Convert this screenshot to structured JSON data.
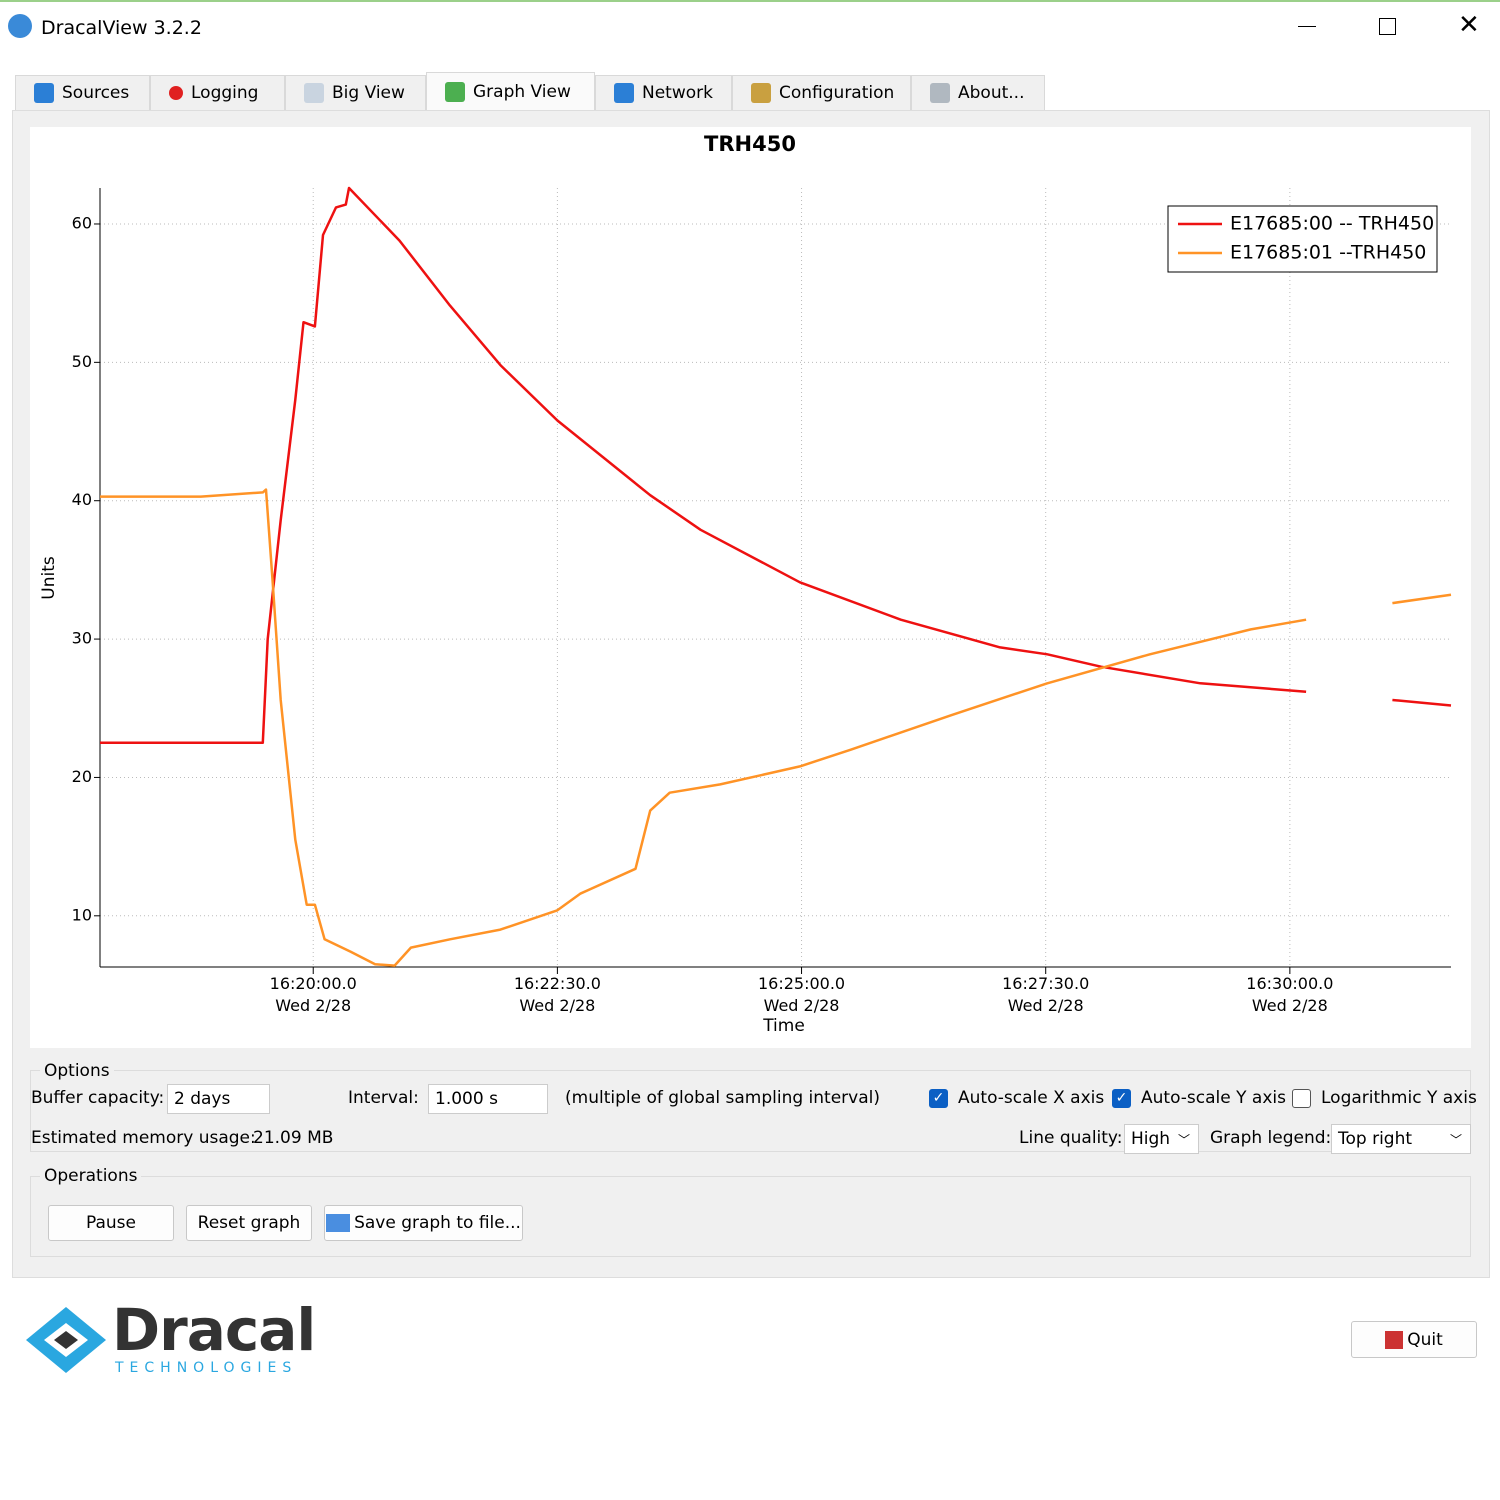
{
  "window": {
    "title": "DracalView 3.2.2"
  },
  "tabs": [
    "Sources",
    "Logging",
    "Big View",
    "Graph View",
    "Network",
    "Configuration",
    "About..."
  ],
  "active_tab": 3,
  "chart_data": {
    "type": "line",
    "title": "TRH450",
    "x_label": "Time",
    "y_label": "Units",
    "xlim": [
      "16:17:49",
      "16:31:39"
    ],
    "xticks": [
      {
        "value": "16:20:00",
        "label": "16:20:00.0",
        "date": "Wed 2/28"
      },
      {
        "value": "16:22:30",
        "label": "16:22:30.0",
        "date": "Wed 2/28"
      },
      {
        "value": "16:25:00",
        "label": "16:25:00.0",
        "date": "Wed 2/28"
      },
      {
        "value": "16:27:30",
        "label": "16:27:30.0",
        "date": "Wed 2/28"
      },
      {
        "value": "16:30:00",
        "label": "16:30:00.0",
        "date": "Wed 2/28"
      }
    ],
    "ylim": [
      6.3,
      62.6
    ],
    "yticks": [
      10,
      20,
      30,
      40,
      50,
      60
    ],
    "grid": true,
    "legend": "top right",
    "series": [
      {
        "name": "E17685:00 -- TRH450",
        "color": "#ee1111",
        "x": [
          "16:17:49",
          "16:19:29",
          "16:19:32",
          "16:19:40",
          "16:19:49",
          "16:19:54",
          "16:20:01",
          "16:20:06",
          "16:20:14",
          "16:20:20",
          "16:20:22",
          "16:20:53",
          "16:21:24",
          "16:21:55",
          "16:22:30",
          "16:23:27",
          "16:23:58",
          "16:24:59",
          "16:26:01",
          "16:27:02",
          "16:27:31",
          "16:28:04",
          "16:29:05",
          "16:30:10",
          "16:30:40",
          "16:31:03",
          "16:31:39"
        ],
        "values": [
          22.5,
          22.5,
          30,
          38.6,
          47.3,
          52.9,
          52.6,
          59.2,
          61.2,
          61.4,
          62.6,
          58.8,
          54.1,
          49.8,
          45.8,
          40.4,
          37.9,
          34.1,
          31.4,
          29.4,
          28.9,
          28.0,
          26.8,
          26.2,
          null,
          25.6,
          25.2
        ]
      },
      {
        "name": "E17685:01 --TRH450",
        "color": "#ff9326",
        "x": [
          "16:17:49",
          "16:18:51",
          "16:19:29",
          "16:19:31",
          "16:19:35",
          "16:19:40",
          "16:19:49",
          "16:19:56",
          "16:20:01",
          "16:20:07",
          "16:20:23",
          "16:20:38",
          "16:20:50",
          "16:21:00",
          "16:21:24",
          "16:21:55",
          "16:22:30",
          "16:22:44",
          "16:23:18",
          "16:23:27",
          "16:23:39",
          "16:24:10",
          "16:24:59",
          "16:25:30",
          "16:26:32",
          "16:27:31",
          "16:28:34",
          "16:29:36",
          "16:30:10",
          "16:30:40",
          "16:31:03",
          "16:31:39"
        ],
        "values": [
          40.3,
          40.3,
          40.6,
          40.8,
          34.3,
          25.6,
          15.5,
          10.8,
          10.8,
          8.3,
          7.4,
          6.5,
          6.4,
          7.7,
          8.3,
          9.0,
          10.4,
          11.6,
          13.4,
          17.6,
          18.9,
          19.5,
          20.8,
          22.0,
          24.5,
          26.8,
          28.9,
          30.7,
          31.4,
          null,
          32.6,
          33.2
        ]
      }
    ]
  },
  "options": {
    "group": "Options",
    "buffer_label": "Buffer capacity:",
    "buffer": "2 days",
    "interval_label": "Interval:",
    "interval": "1.000 s",
    "interval_note": "(multiple of global sampling interval)",
    "checkboxes": [
      {
        "label": "Auto-scale X axis",
        "checked": true
      },
      {
        "label": "Auto-scale Y axis",
        "checked": true
      },
      {
        "label": "Logarithmic Y axis",
        "checked": false
      }
    ],
    "memory_label": "Estimated memory usage:",
    "memory": "21.09 MB",
    "quality_label": "Line quality:",
    "quality": "High",
    "legend_label": "Graph legend:",
    "legend": "Top right"
  },
  "operations": {
    "group": "Operations",
    "buttons": [
      "Pause",
      "Reset graph",
      "Save graph to file..."
    ]
  },
  "logo": {
    "name": "Dracal",
    "tagline": "TECHNOLOGIES"
  },
  "quit": "Quit"
}
